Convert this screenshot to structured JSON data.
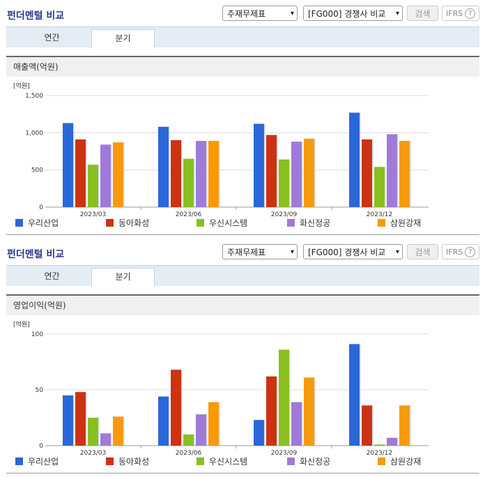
{
  "panels": [
    {
      "title": "펀더멘털 비교",
      "statement_select": "주재무제표",
      "group_select": "[FG000] 경쟁사 비교",
      "search_label": "검색",
      "ifrs_label": "IFRS",
      "ifrs_help": "?",
      "tabs": [
        "연간",
        "분기"
      ],
      "active_tab": 1,
      "section_title": "매출액(억원)"
    },
    {
      "title": "펀더멘털 비교",
      "statement_select": "주재무제표",
      "group_select": "[FG000] 경쟁사 비교",
      "search_label": "검색",
      "ifrs_label": "IFRS",
      "ifrs_help": "?",
      "tabs": [
        "연간",
        "분기"
      ],
      "active_tab": 1,
      "section_title": "영업이익(억원)"
    }
  ],
  "colors": {
    "우리산업": "#2a67d8",
    "동아화성": "#cc3311",
    "우신시스템": "#88c020",
    "화신정공": "#a07ad8",
    "삼원강재": "#f79a0b"
  },
  "chart_data": [
    {
      "type": "bar",
      "unit_label": "[억원]",
      "categories": [
        "2023/03",
        "2023/06",
        "2023/09",
        "2023/12"
      ],
      "ylim": [
        0,
        1500
      ],
      "yticks": [
        0,
        500,
        1000,
        1500
      ],
      "ytick_labels": [
        "0",
        "500",
        "1,000",
        "1,500"
      ],
      "grid": true,
      "legend_position": "bottom",
      "series": [
        {
          "name": "우리산업",
          "values": [
            1130,
            1080,
            1120,
            1270
          ]
        },
        {
          "name": "동아화성",
          "values": [
            910,
            900,
            970,
            910
          ]
        },
        {
          "name": "우신시스템",
          "values": [
            570,
            650,
            640,
            540
          ]
        },
        {
          "name": "화신정공",
          "values": [
            840,
            890,
            880,
            980
          ]
        },
        {
          "name": "삼원강재",
          "values": [
            870,
            890,
            920,
            890
          ]
        }
      ]
    },
    {
      "type": "bar",
      "unit_label": "[억원]",
      "categories": [
        "2023/03",
        "2023/06",
        "2023/09",
        "2023/12"
      ],
      "ylim": [
        0,
        100
      ],
      "yticks": [
        0,
        50,
        100
      ],
      "ytick_labels": [
        "0",
        "50",
        "100"
      ],
      "grid": true,
      "legend_position": "bottom",
      "series": [
        {
          "name": "우리산업",
          "values": [
            45,
            44,
            23,
            91
          ]
        },
        {
          "name": "동아화성",
          "values": [
            48,
            68,
            62,
            36
          ]
        },
        {
          "name": "우신시스템",
          "values": [
            25,
            10,
            86,
            1
          ]
        },
        {
          "name": "화신정공",
          "values": [
            11,
            28,
            39,
            7
          ]
        },
        {
          "name": "삼원강재",
          "values": [
            26,
            39,
            61,
            36
          ]
        }
      ]
    }
  ]
}
